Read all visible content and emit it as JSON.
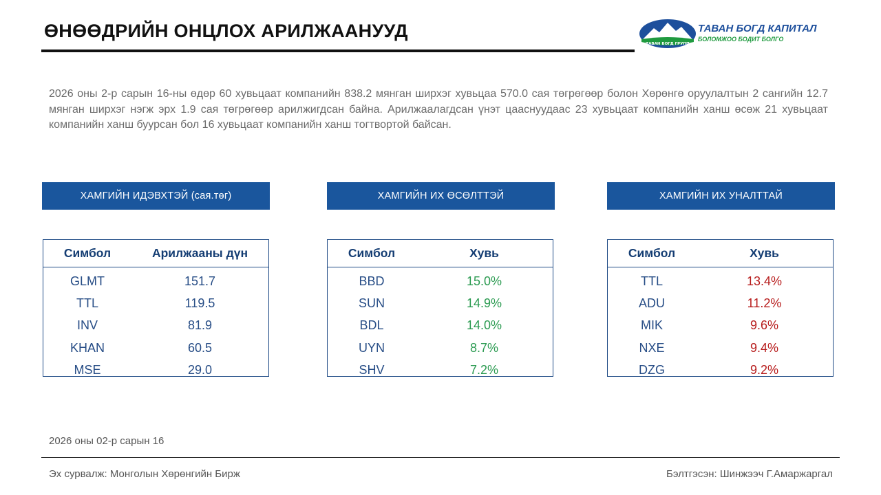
{
  "title": "ӨНӨӨДРИЙН ОНЦЛОХ АРИЛЖААНУУД",
  "logo": {
    "name": "ТАВАН БОГД КАПИТАЛ",
    "tagline": "БОЛОМЖОО БОДИТ БОЛГО",
    "badge": "ТАВАН БОГД ГРУПП",
    "colors": {
      "blue": "#1d4f9c",
      "green": "#1f9a3f"
    }
  },
  "summary": "2026 оны 2-р сарын 16-ны өдөр 60 хувьцаат компанийн 838.2 мянган ширхэг хувьцаа 570.0 сая төгрөгөөр болон Хөрөнгө оруулалтын 2 сангийн 12.7 мянган ширхэг нэгж эрх 1.9 сая төгрөгөөр арилжигдсан байна. Арилжаалагдсан үнэт цааснуудаас 23 хувьцаат компанийн ханш өсөж 21 хувьцаат компанийн ханш буурсан бол 16 хувьцаат компанийн ханш тогтвортой байсан.",
  "panels": {
    "active": {
      "header": "ХАМГИЙН ИДЭВХТЭЙ (сая.төг)",
      "col1": "Симбол",
      "col2": "Арилжааны дүн",
      "rows": [
        {
          "symbol": "GLMT",
          "value": "151.7"
        },
        {
          "symbol": "TTL",
          "value": "119.5"
        },
        {
          "symbol": "INV",
          "value": "81.9"
        },
        {
          "symbol": "KHAN",
          "value": "60.5"
        },
        {
          "symbol": "MSE",
          "value": "29.0"
        }
      ]
    },
    "gainers": {
      "header": "ХАМГИЙН ИХ ӨСӨЛТТЭЙ",
      "col1": "Симбол",
      "col2": "Хувь",
      "rows": [
        {
          "symbol": "BBD",
          "value": "15.0%"
        },
        {
          "symbol": "SUN",
          "value": "14.9%"
        },
        {
          "symbol": "BDL",
          "value": "14.0%"
        },
        {
          "symbol": "UYN",
          "value": "8.7%"
        },
        {
          "symbol": "SHV",
          "value": "7.2%"
        }
      ]
    },
    "losers": {
      "header": "ХАМГИЙН ИХ УНАЛТТАЙ",
      "col1": "Симбол",
      "col2": "Хувь",
      "rows": [
        {
          "symbol": "TTL",
          "value": "13.4%"
        },
        {
          "symbol": "ADU",
          "value": "11.2%"
        },
        {
          "symbol": "MIK",
          "value": "9.6%"
        },
        {
          "symbol": "NXE",
          "value": "9.4%"
        },
        {
          "symbol": "DZG",
          "value": "9.2%"
        }
      ]
    }
  },
  "footer": {
    "date": "2026 оны 02-р сарын 16",
    "source": "Эх сурвалж: Монголын Хөрөнгийн Бирж",
    "author": "Бэлтгэсэн: Шинжээч Г.Амаржаргал"
  },
  "colors": {
    "header_blue": "#1a569d",
    "gain_green": "#2a9a50",
    "loss_red": "#b71c1c"
  }
}
